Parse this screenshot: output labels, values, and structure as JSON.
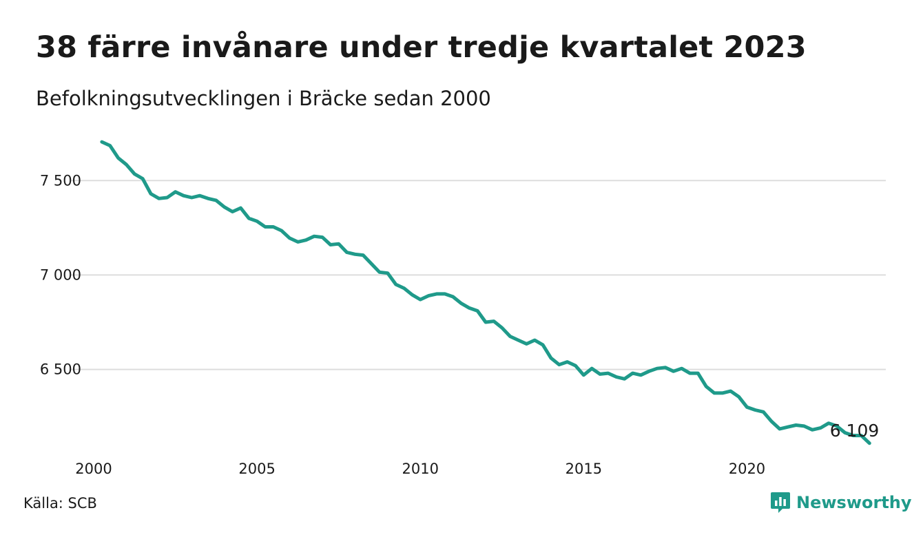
{
  "header": {
    "title": "38 färre invånare under tredje kvartalet 2023",
    "subtitle": "Befolkningsutvecklingen i Bräcke sedan 2000"
  },
  "footer": {
    "source": "Källa: SCB",
    "brand": "Newsworthy",
    "brand_color": "#1f9a8a"
  },
  "chart_data": {
    "type": "line",
    "line_color": "#1f9a8a",
    "grid": true,
    "y_gridlines": [
      6500,
      7000,
      7500
    ],
    "y_tick_labels": [
      "6 500",
      "7 000",
      "7 500"
    ],
    "x_ticks": [
      2000,
      2005,
      2010,
      2015,
      2020
    ],
    "x_tick_labels": [
      "2000",
      "2005",
      "2010",
      "2015",
      "2020"
    ],
    "xlim": [
      2000,
      2024.25
    ],
    "ylim": [
      6050,
      7800
    ],
    "end_label": "6 109",
    "x_start": 2000.25,
    "x_step": 0.25,
    "values": [
      7705,
      7685,
      7620,
      7585,
      7535,
      7510,
      7430,
      7405,
      7410,
      7440,
      7420,
      7410,
      7420,
      7405,
      7395,
      7360,
      7335,
      7355,
      7300,
      7285,
      7255,
      7255,
      7235,
      7195,
      7175,
      7185,
      7205,
      7200,
      7160,
      7165,
      7120,
      7110,
      7105,
      7060,
      7015,
      7010,
      6950,
      6930,
      6895,
      6870,
      6890,
      6900,
      6900,
      6885,
      6850,
      6825,
      6810,
      6750,
      6755,
      6720,
      6675,
      6655,
      6635,
      6655,
      6630,
      6560,
      6525,
      6540,
      6520,
      6470,
      6505,
      6475,
      6480,
      6460,
      6450,
      6480,
      6470,
      6490,
      6505,
      6510,
      6490,
      6505,
      6480,
      6480,
      6410,
      6375,
      6375,
      6385,
      6355,
      6300,
      6285,
      6275,
      6225,
      6185,
      6195,
      6205,
      6200,
      6180,
      6190,
      6215,
      6200,
      6165,
      6150,
      6150,
      6109
    ]
  }
}
